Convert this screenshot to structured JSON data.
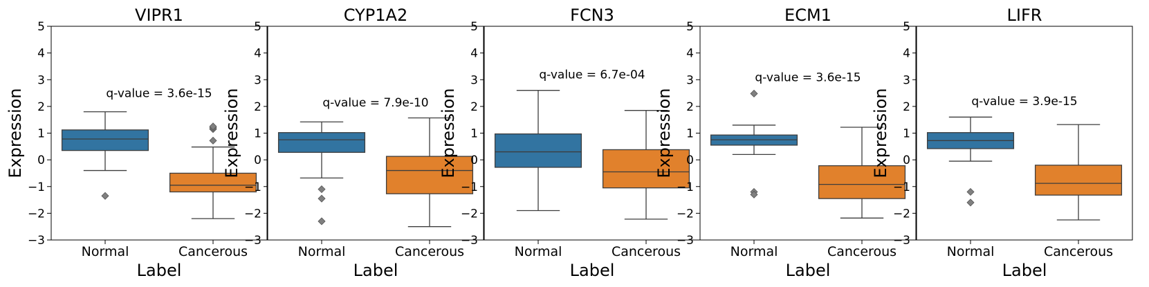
{
  "colors": {
    "normal": "#3274a1",
    "cancerous": "#e1812c",
    "line": "#3d3d3d",
    "outlier": "#808080"
  },
  "chart_data": [
    {
      "type": "box",
      "title": "VIPR1",
      "xlabel": "Label",
      "ylabel": "Expression",
      "ylim": [
        -3,
        5
      ],
      "yticks": [
        "5",
        "4",
        "3",
        "2",
        "1",
        "0",
        "−1",
        "−2",
        "−3"
      ],
      "categories": [
        "Normal",
        "Cancerous"
      ],
      "annotation": "q-value = 3.6e-15",
      "annotation_y": 2.5,
      "boxes": [
        {
          "whisker_low": -0.4,
          "q1": 0.35,
          "median": 0.78,
          "q3": 1.12,
          "whisker_high": 1.8,
          "outliers": [
            -1.35
          ]
        },
        {
          "whisker_low": -2.2,
          "q1": -1.2,
          "median": -0.95,
          "q3": -0.5,
          "whisker_high": 0.48,
          "outliers": [
            0.72,
            1.15,
            1.2,
            1.25
          ]
        }
      ]
    },
    {
      "type": "box",
      "title": "CYP1A2",
      "xlabel": "Label",
      "ylabel": "Expression",
      "ylim": [
        -3,
        5
      ],
      "yticks": [
        "5",
        "4",
        "3",
        "2",
        "1",
        "0",
        "−1",
        "−2",
        "−3"
      ],
      "categories": [
        "Normal",
        "Cancerous"
      ],
      "annotation": "q-value = 7.9e-10",
      "annotation_y": 2.15,
      "boxes": [
        {
          "whisker_low": -0.68,
          "q1": 0.28,
          "median": 0.75,
          "q3": 1.02,
          "whisker_high": 1.42,
          "outliers": [
            -1.1,
            -1.45,
            -2.3
          ]
        },
        {
          "whisker_low": -2.5,
          "q1": -1.27,
          "median": -0.4,
          "q3": 0.13,
          "whisker_high": 1.57,
          "outliers": []
        }
      ]
    },
    {
      "type": "box",
      "title": "FCN3",
      "xlabel": "Label",
      "ylabel": "Expression",
      "ylim": [
        -3,
        5
      ],
      "yticks": [
        "5",
        "4",
        "3",
        "2",
        "1",
        "0",
        "−1",
        "−2",
        "−3"
      ],
      "categories": [
        "Normal",
        "Cancerous"
      ],
      "annotation": "q-value = 6.7e-04",
      "annotation_y": 3.2,
      "boxes": [
        {
          "whisker_low": -1.9,
          "q1": -0.28,
          "median": 0.3,
          "q3": 0.97,
          "whisker_high": 2.6,
          "outliers": []
        },
        {
          "whisker_low": -2.22,
          "q1": -1.05,
          "median": -0.45,
          "q3": 0.38,
          "whisker_high": 1.85,
          "outliers": []
        }
      ]
    },
    {
      "type": "box",
      "title": "ECM1",
      "xlabel": "Label",
      "ylabel": "Expression",
      "ylim": [
        -3,
        5
      ],
      "yticks": [
        "5",
        "4",
        "3",
        "2",
        "1",
        "0",
        "−1",
        "−2",
        "−3"
      ],
      "categories": [
        "Normal",
        "Cancerous"
      ],
      "annotation": "q-value = 3.6e-15",
      "annotation_y": 3.1,
      "boxes": [
        {
          "whisker_low": 0.2,
          "q1": 0.55,
          "median": 0.75,
          "q3": 0.93,
          "whisker_high": 1.3,
          "outliers": [
            2.48,
            -1.2,
            -1.3
          ]
        },
        {
          "whisker_low": -2.18,
          "q1": -1.45,
          "median": -0.92,
          "q3": -0.22,
          "whisker_high": 1.22,
          "outliers": []
        }
      ]
    },
    {
      "type": "box",
      "title": "LIFR",
      "xlabel": "Label",
      "ylabel": "Expression",
      "ylim": [
        -3,
        5
      ],
      "yticks": [
        "5",
        "4",
        "3",
        "2",
        "1",
        "0",
        "−1",
        "−2",
        "−3"
      ],
      "categories": [
        "Normal",
        "Cancerous"
      ],
      "annotation": "q-value = 3.9e-15",
      "annotation_y": 2.2,
      "boxes": [
        {
          "whisker_low": -0.05,
          "q1": 0.42,
          "median": 0.72,
          "q3": 1.02,
          "whisker_high": 1.6,
          "outliers": [
            -1.2,
            -1.6
          ]
        },
        {
          "whisker_low": -2.25,
          "q1": -1.32,
          "median": -0.88,
          "q3": -0.2,
          "whisker_high": 1.32,
          "outliers": []
        }
      ]
    }
  ]
}
